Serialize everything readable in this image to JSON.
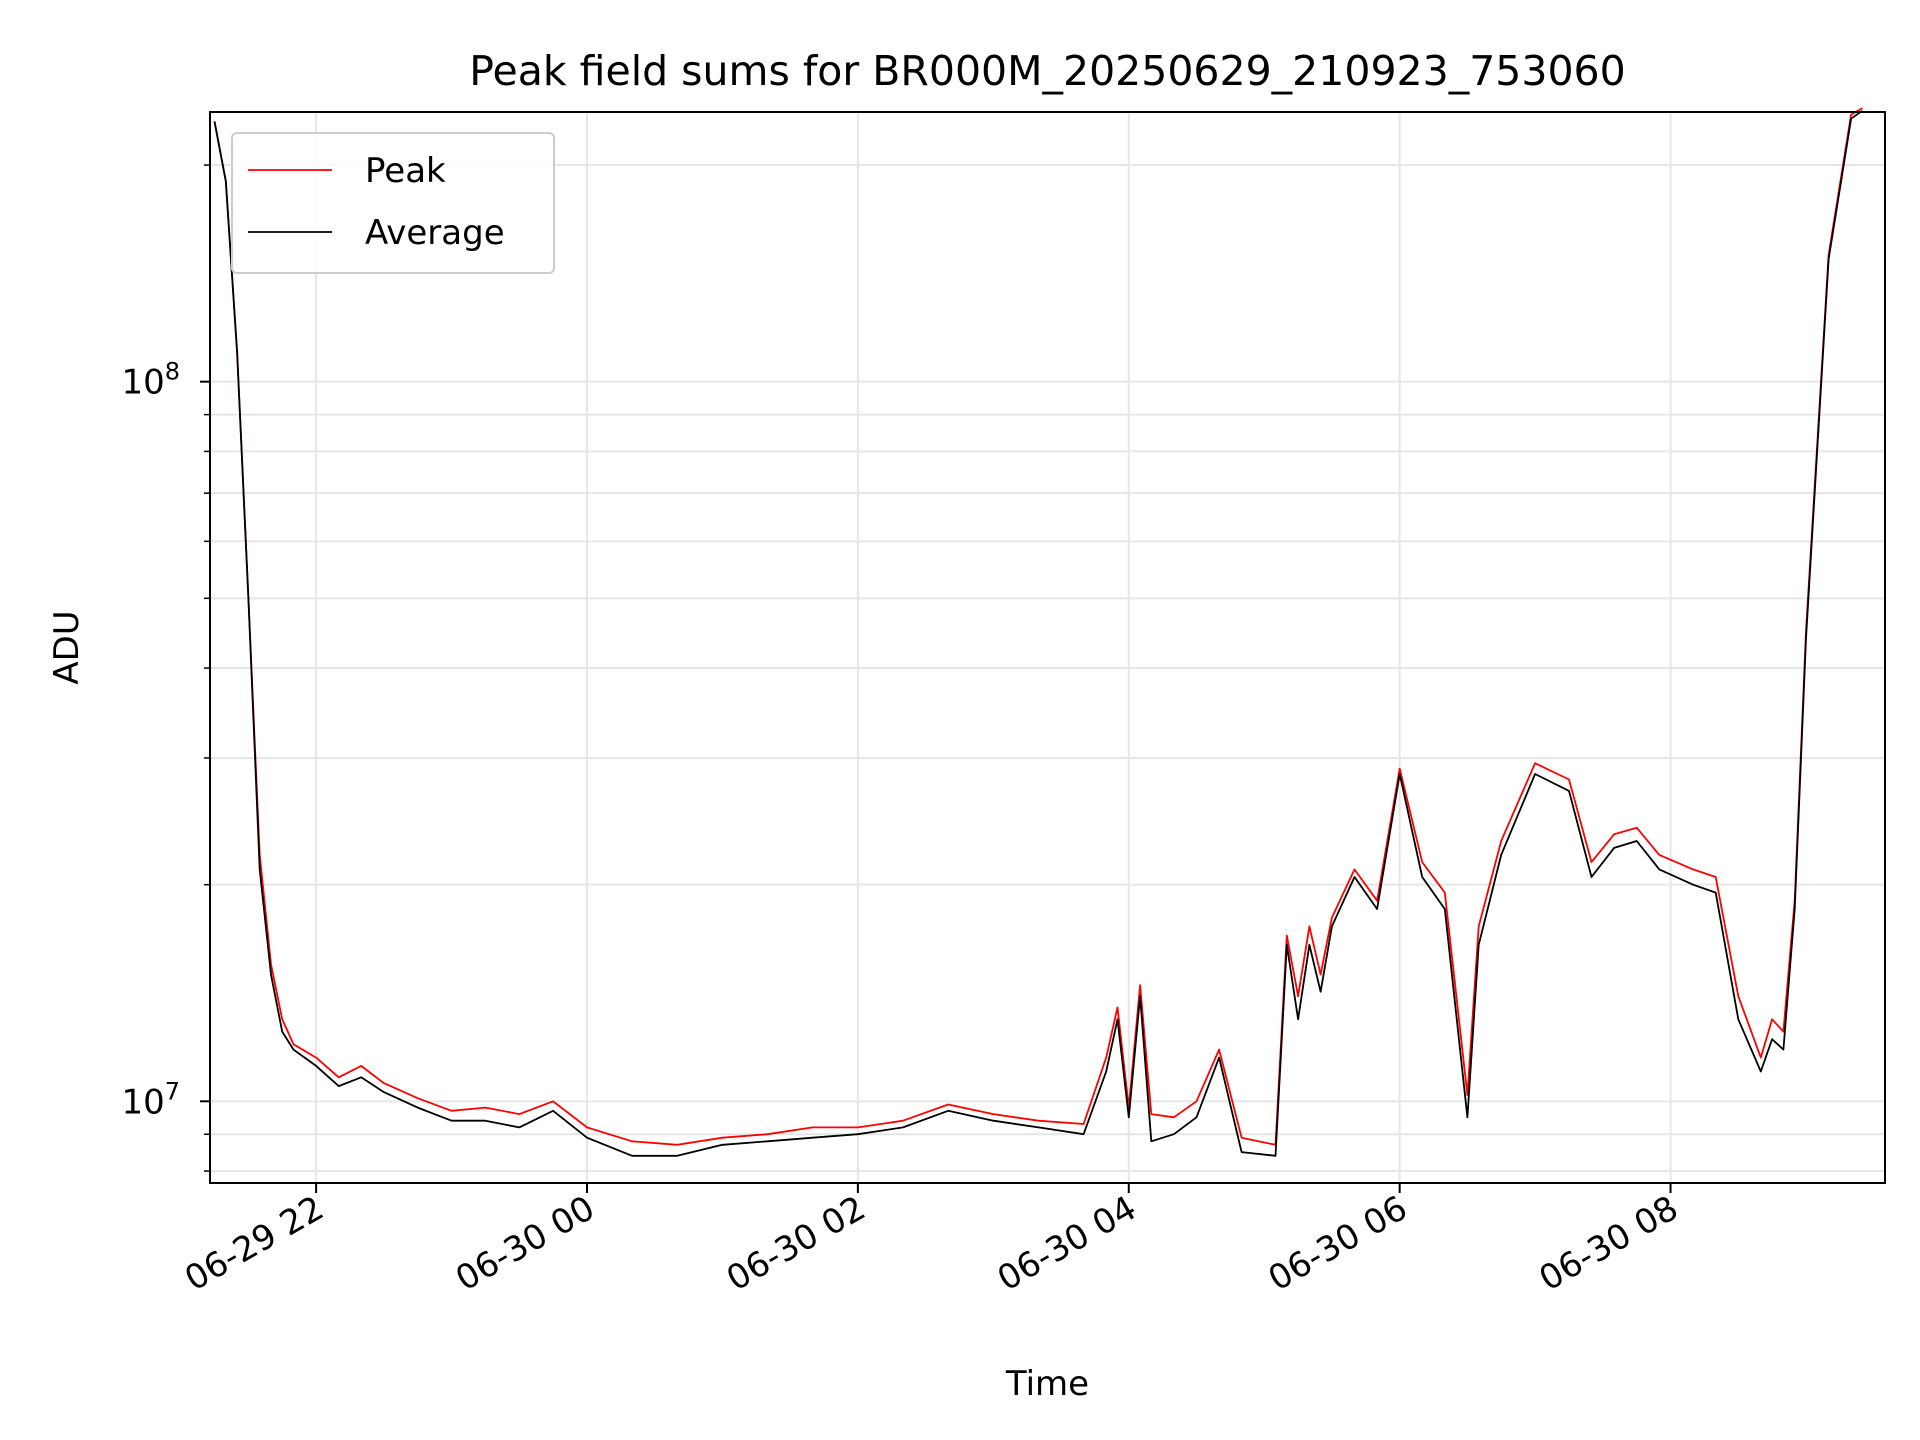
{
  "chart_data": {
    "type": "line",
    "title": "Peak field sums for BR000M_20250629_210923_753060",
    "xlabel": "Time",
    "ylabel": "ADU",
    "y_scale": "log",
    "x_axis": "datetime",
    "xlim": [
      "2025-06-29 21:13",
      "2025-06-30 09:35"
    ],
    "ylim": [
      7700000,
      237000000
    ],
    "x_ticks": [
      {
        "value": "2025-06-29 22:00",
        "label": "06-29 22"
      },
      {
        "value": "2025-06-30 00:00",
        "label": "06-30 00"
      },
      {
        "value": "2025-06-30 02:00",
        "label": "06-30 02"
      },
      {
        "value": "2025-06-30 04:00",
        "label": "06-30 04"
      },
      {
        "value": "2025-06-30 06:00",
        "label": "06-30 06"
      },
      {
        "value": "2025-06-30 08:00",
        "label": "06-30 08"
      }
    ],
    "y_ticks": [
      {
        "value": 10000000,
        "base": "10",
        "exp": "7"
      },
      {
        "value": 100000000,
        "base": "10",
        "exp": "8"
      }
    ],
    "grid": true,
    "legend_position": "top-left",
    "series": [
      {
        "name": "Peak",
        "color": "#ff0000",
        "x": [
          "2025-06-29 21:15",
          "2025-06-29 21:20",
          "2025-06-29 21:25",
          "2025-06-29 21:30",
          "2025-06-29 21:35",
          "2025-06-29 21:40",
          "2025-06-29 21:45",
          "2025-06-29 21:50",
          "2025-06-29 22:00",
          "2025-06-29 22:10",
          "2025-06-29 22:20",
          "2025-06-29 22:30",
          "2025-06-29 22:45",
          "2025-06-29 23:00",
          "2025-06-29 23:15",
          "2025-06-29 23:30",
          "2025-06-29 23:45",
          "2025-06-30 00:00",
          "2025-06-30 00:20",
          "2025-06-30 00:40",
          "2025-06-30 01:00",
          "2025-06-30 01:20",
          "2025-06-30 01:40",
          "2025-06-30 02:00",
          "2025-06-30 02:20",
          "2025-06-30 02:40",
          "2025-06-30 03:00",
          "2025-06-30 03:20",
          "2025-06-30 03:40",
          "2025-06-30 03:50",
          "2025-06-30 03:55",
          "2025-06-30 04:00",
          "2025-06-30 04:05",
          "2025-06-30 04:10",
          "2025-06-30 04:20",
          "2025-06-30 04:30",
          "2025-06-30 04:40",
          "2025-06-30 04:50",
          "2025-06-30 05:05",
          "2025-06-30 05:10",
          "2025-06-30 05:15",
          "2025-06-30 05:20",
          "2025-06-30 05:25",
          "2025-06-30 05:30",
          "2025-06-30 05:40",
          "2025-06-30 05:50",
          "2025-06-30 06:00",
          "2025-06-30 06:10",
          "2025-06-30 06:20",
          "2025-06-30 06:30",
          "2025-06-30 06:35",
          "2025-06-30 06:45",
          "2025-06-30 07:00",
          "2025-06-30 07:15",
          "2025-06-30 07:25",
          "2025-06-30 07:35",
          "2025-06-30 07:45",
          "2025-06-30 07:55",
          "2025-06-30 08:10",
          "2025-06-30 08:20",
          "2025-06-30 08:30",
          "2025-06-30 08:40",
          "2025-06-30 08:45",
          "2025-06-30 08:50",
          "2025-06-30 08:55",
          "2025-06-30 09:00",
          "2025-06-30 09:10",
          "2025-06-30 09:20",
          "2025-06-30 09:25"
        ],
        "values": [
          230000000,
          190000000,
          110000000,
          50000000,
          22000000,
          15500000,
          13000000,
          12000000,
          11500000,
          10800000,
          11200000,
          10600000,
          10100000,
          9700000,
          9800000,
          9600000,
          10000000,
          9200000,
          8800000,
          8700000,
          8900000,
          9000000,
          9200000,
          9200000,
          9400000,
          9900000,
          9600000,
          9400000,
          9300000,
          11500000,
          13500000,
          9800000,
          14500000,
          9600000,
          9500000,
          10000000,
          11800000,
          8900000,
          8700000,
          17000000,
          14000000,
          17500000,
          15000000,
          18000000,
          21000000,
          19000000,
          29000000,
          21500000,
          19500000,
          10200000,
          17500000,
          23000000,
          29500000,
          28000000,
          21500000,
          23500000,
          24000000,
          22000000,
          21000000,
          20500000,
          14000000,
          11500000,
          13000000,
          12500000,
          19000000,
          45000000,
          150000000,
          235000000,
          240000000
        ]
      },
      {
        "name": "Average",
        "color": "#000000",
        "x": [
          "2025-06-29 21:15",
          "2025-06-29 21:20",
          "2025-06-29 21:25",
          "2025-06-29 21:30",
          "2025-06-29 21:35",
          "2025-06-29 21:40",
          "2025-06-29 21:45",
          "2025-06-29 21:50",
          "2025-06-29 22:00",
          "2025-06-29 22:10",
          "2025-06-29 22:20",
          "2025-06-29 22:30",
          "2025-06-29 22:45",
          "2025-06-29 23:00",
          "2025-06-29 23:15",
          "2025-06-29 23:30",
          "2025-06-29 23:45",
          "2025-06-30 00:00",
          "2025-06-30 00:20",
          "2025-06-30 00:40",
          "2025-06-30 01:00",
          "2025-06-30 01:20",
          "2025-06-30 01:40",
          "2025-06-30 02:00",
          "2025-06-30 02:20",
          "2025-06-30 02:40",
          "2025-06-30 03:00",
          "2025-06-30 03:20",
          "2025-06-30 03:40",
          "2025-06-30 03:50",
          "2025-06-30 03:55",
          "2025-06-30 04:00",
          "2025-06-30 04:05",
          "2025-06-30 04:10",
          "2025-06-30 04:20",
          "2025-06-30 04:30",
          "2025-06-30 04:40",
          "2025-06-30 04:50",
          "2025-06-30 05:05",
          "2025-06-30 05:10",
          "2025-06-30 05:15",
          "2025-06-30 05:20",
          "2025-06-30 05:25",
          "2025-06-30 05:30",
          "2025-06-30 05:40",
          "2025-06-30 05:50",
          "2025-06-30 06:00",
          "2025-06-30 06:10",
          "2025-06-30 06:20",
          "2025-06-30 06:30",
          "2025-06-30 06:35",
          "2025-06-30 06:45",
          "2025-06-30 07:00",
          "2025-06-30 07:15",
          "2025-06-30 07:25",
          "2025-06-30 07:35",
          "2025-06-30 07:45",
          "2025-06-30 07:55",
          "2025-06-30 08:10",
          "2025-06-30 08:20",
          "2025-06-30 08:30",
          "2025-06-30 08:40",
          "2025-06-30 08:45",
          "2025-06-30 08:50",
          "2025-06-30 08:55",
          "2025-06-30 09:00",
          "2025-06-30 09:10",
          "2025-06-30 09:20",
          "2025-06-30 09:25"
        ],
        "values": [
          230000000,
          190000000,
          110000000,
          50000000,
          21000000,
          15000000,
          12500000,
          11800000,
          11200000,
          10500000,
          10800000,
          10300000,
          9800000,
          9400000,
          9400000,
          9200000,
          9700000,
          8900000,
          8400000,
          8400000,
          8700000,
          8800000,
          8900000,
          9000000,
          9200000,
          9700000,
          9400000,
          9200000,
          9000000,
          11000000,
          13000000,
          9500000,
          14000000,
          8800000,
          9000000,
          9500000,
          11500000,
          8500000,
          8400000,
          16500000,
          13000000,
          16500000,
          14200000,
          17500000,
          20500000,
          18500000,
          28500000,
          20500000,
          18500000,
          9500000,
          16500000,
          22000000,
          28500000,
          27000000,
          20500000,
          22500000,
          23000000,
          21000000,
          20000000,
          19500000,
          13000000,
          11000000,
          12200000,
          11800000,
          18500000,
          44000000,
          148000000,
          232000000,
          238000000
        ]
      }
    ]
  }
}
